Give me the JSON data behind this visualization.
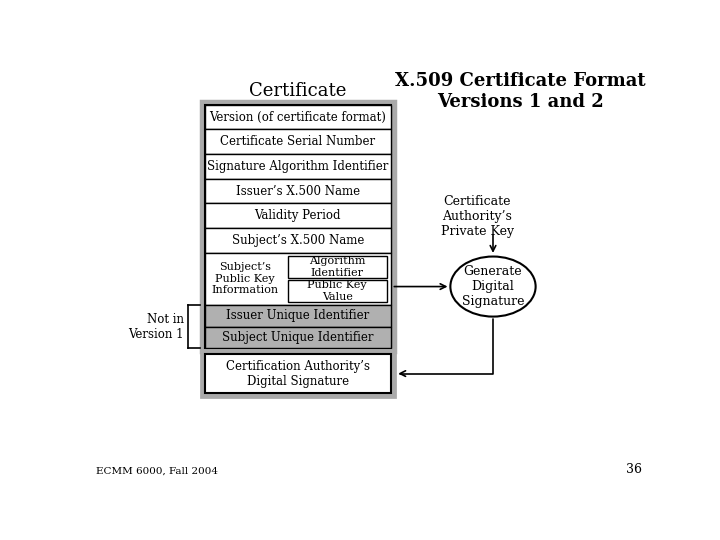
{
  "title": "X.509 Certificate Format\nVersions 1 and 2",
  "cert_label": "Certificate",
  "rows_white": [
    "Version (of certificate format)",
    "Certificate Serial Number",
    "Signature Algorithm Identifier",
    "Issuer’s X.500 Name",
    "Validity Period",
    "Subject’s X.500 Name"
  ],
  "rows_gray": [
    "Issuer Unique Identifier",
    "Subject Unique Identifier"
  ],
  "pubkey_label": "Subject’s\nPublic Key\nInformation",
  "algo_label": "Algorithm\nIdentifier",
  "pubkey_val_label": "Public Key\nValue",
  "not_in_v1": "Not in\nVersion 1",
  "cert_auth_key": "Certificate\nAuthority’s\nPrivate Key",
  "generate_label": "Generate\nDigital\nSignature",
  "bottom_label": "Certification Authority’s\nDigital Signature",
  "footer": "ECMM 6000, Fall 2004",
  "page_num": "36",
  "bg_color": "#ffffff",
  "box_border": "#000000",
  "gray_fill": "#b0b0b0",
  "white_fill": "#ffffff",
  "outer_gray": "#aaaaaa"
}
